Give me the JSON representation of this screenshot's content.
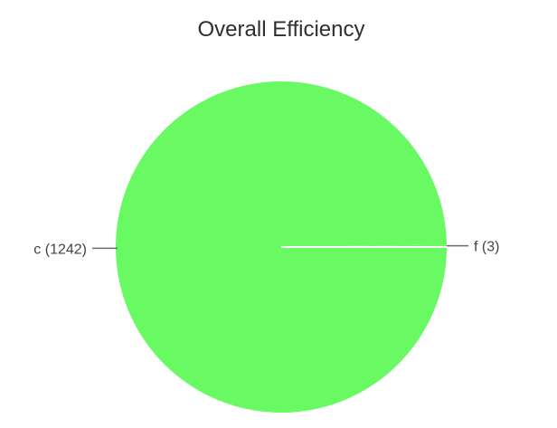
{
  "chart_data": {
    "type": "pie",
    "title": "Overall Efficiency",
    "slices": [
      {
        "label": "c",
        "value": 1242,
        "display": "c (1242)",
        "color": "#68f963"
      },
      {
        "label": "f",
        "value": 3,
        "display": "f (3)",
        "color": "#68f963"
      }
    ]
  }
}
